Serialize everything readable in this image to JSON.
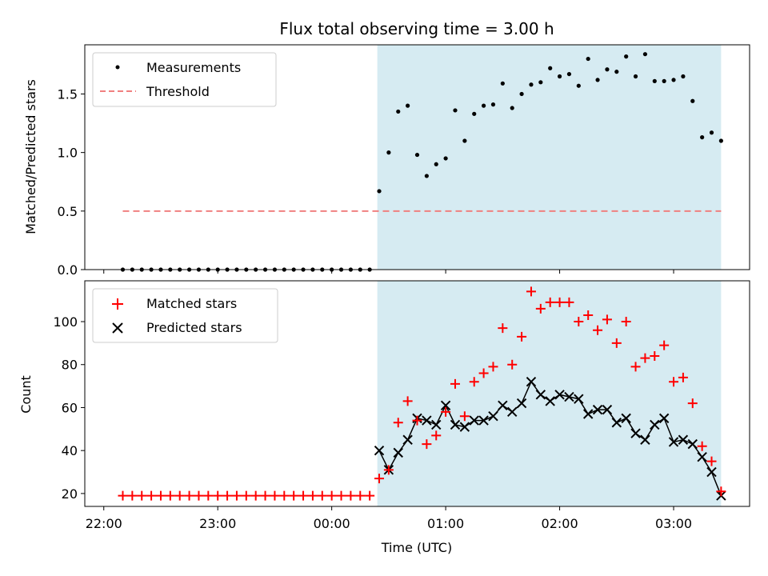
{
  "chart_data": [
    {
      "type": "scatter",
      "title": "Flux total observing time = 3.00 h",
      "xlabel": "",
      "ylabel": "Matched/Predicted stars",
      "xlim": [
        "21:50",
        "03:40"
      ],
      "ylim": [
        0,
        1.92
      ],
      "yticks": [
        0.0,
        0.5,
        1.0,
        1.5
      ],
      "ytick_labels": [
        "0.0",
        "0.5",
        "1.0",
        "1.5"
      ],
      "grid": false,
      "legend_position": "upper-left",
      "legend": [
        "Measurements",
        "Threshold"
      ],
      "shaded_region": {
        "start": "00:24",
        "end": "03:25",
        "color": "#add8e6"
      },
      "threshold": {
        "name": "Threshold",
        "value": 0.5,
        "start": "22:10",
        "end": "03:25",
        "color": "#f08080"
      },
      "series": [
        {
          "name": "Measurements",
          "color": "#000000",
          "x": [
            "22:10",
            "22:15",
            "22:20",
            "22:25",
            "22:30",
            "22:35",
            "22:40",
            "22:45",
            "22:50",
            "22:55",
            "23:00",
            "23:05",
            "23:10",
            "23:15",
            "23:20",
            "23:25",
            "23:30",
            "23:35",
            "23:40",
            "23:45",
            "23:50",
            "23:55",
            "00:00",
            "00:05",
            "00:10",
            "00:15",
            "00:20",
            "00:25",
            "00:30",
            "00:35",
            "00:40",
            "00:45",
            "00:50",
            "00:55",
            "01:00",
            "01:05",
            "01:10",
            "01:15",
            "01:20",
            "01:25",
            "01:30",
            "01:35",
            "01:40",
            "01:45",
            "01:50",
            "01:55",
            "02:00",
            "02:05",
            "02:10",
            "02:15",
            "02:20",
            "02:25",
            "02:30",
            "02:35",
            "02:40",
            "02:45",
            "02:50",
            "02:55",
            "03:00",
            "03:05",
            "03:10",
            "03:15",
            "03:20",
            "03:25"
          ],
          "y": [
            0,
            0,
            0,
            0,
            0,
            0,
            0,
            0,
            0,
            0,
            0,
            0,
            0,
            0,
            0,
            0,
            0,
            0,
            0,
            0,
            0,
            0,
            0,
            0,
            0,
            0,
            0,
            0.67,
            1.0,
            1.35,
            1.4,
            0.98,
            0.8,
            0.9,
            0.95,
            1.36,
            1.1,
            1.33,
            1.4,
            1.41,
            1.59,
            1.38,
            1.5,
            1.58,
            1.6,
            1.72,
            1.65,
            1.67,
            1.57,
            1.8,
            1.62,
            1.71,
            1.69,
            1.82,
            1.65,
            1.84,
            1.61,
            1.61,
            1.62,
            1.65,
            1.44,
            1.13,
            1.17,
            1.1
          ]
        }
      ]
    },
    {
      "type": "scatter",
      "title": "",
      "xlabel": "Time (UTC)",
      "ylabel": "Count",
      "xlim": [
        "21:50",
        "03:40"
      ],
      "ylim": [
        14,
        119
      ],
      "yticks": [
        20,
        40,
        60,
        80,
        100
      ],
      "ytick_labels": [
        "20",
        "40",
        "60",
        "80",
        "100"
      ],
      "xticks": [
        "22:00",
        "23:00",
        "00:00",
        "01:00",
        "02:00",
        "03:00"
      ],
      "xtick_labels": [
        "22:00",
        "23:00",
        "00:00",
        "01:00",
        "02:00",
        "03:00"
      ],
      "grid": false,
      "legend_position": "upper-left",
      "legend": [
        "Matched stars",
        "Predicted stars"
      ],
      "shaded_region": {
        "start": "00:24",
        "end": "03:25",
        "color": "#add8e6"
      },
      "series": [
        {
          "name": "Matched stars",
          "marker": "+",
          "color": "#ff0000",
          "x": [
            "22:10",
            "22:15",
            "22:20",
            "22:25",
            "22:30",
            "22:35",
            "22:40",
            "22:45",
            "22:50",
            "22:55",
            "23:00",
            "23:05",
            "23:10",
            "23:15",
            "23:20",
            "23:25",
            "23:30",
            "23:35",
            "23:40",
            "23:45",
            "23:50",
            "23:55",
            "00:00",
            "00:05",
            "00:10",
            "00:15",
            "00:20",
            "00:25",
            "00:30",
            "00:35",
            "00:40",
            "00:45",
            "00:50",
            "00:55",
            "01:00",
            "01:05",
            "01:10",
            "01:15",
            "01:20",
            "01:25",
            "01:30",
            "01:35",
            "01:40",
            "01:45",
            "01:50",
            "01:55",
            "02:00",
            "02:05",
            "02:10",
            "02:15",
            "02:20",
            "02:25",
            "02:30",
            "02:35",
            "02:40",
            "02:45",
            "02:50",
            "02:55",
            "03:00",
            "03:05",
            "03:10",
            "03:15",
            "03:20",
            "03:25"
          ],
          "y": [
            19,
            19,
            19,
            19,
            19,
            19,
            19,
            19,
            19,
            19,
            19,
            19,
            19,
            19,
            19,
            19,
            19,
            19,
            19,
            19,
            19,
            19,
            19,
            19,
            19,
            19,
            19,
            27,
            31,
            53,
            63,
            54,
            43,
            47,
            58,
            71,
            56,
            72,
            76,
            79,
            97,
            80,
            93,
            114,
            106,
            109,
            109,
            109,
            100,
            103,
            96,
            101,
            90,
            100,
            79,
            83,
            84,
            89,
            72,
            74,
            62,
            42,
            35,
            21
          ]
        },
        {
          "name": "Predicted stars",
          "marker": "x",
          "color": "#000000",
          "x": [
            "00:25",
            "00:30",
            "00:35",
            "00:40",
            "00:45",
            "00:50",
            "00:55",
            "01:00",
            "01:05",
            "01:10",
            "01:15",
            "01:20",
            "01:25",
            "01:30",
            "01:35",
            "01:40",
            "01:45",
            "01:50",
            "01:55",
            "02:00",
            "02:05",
            "02:10",
            "02:15",
            "02:20",
            "02:25",
            "02:30",
            "02:35",
            "02:40",
            "02:45",
            "02:50",
            "02:55",
            "03:00",
            "03:05",
            "03:10",
            "03:15",
            "03:20",
            "03:25"
          ],
          "y": [
            40,
            31,
            39,
            45,
            55,
            54,
            52,
            61,
            52,
            51,
            54,
            54,
            56,
            61,
            58,
            62,
            72,
            66,
            63,
            66,
            65,
            64,
            57,
            59,
            59,
            53,
            55,
            48,
            45,
            52,
            55,
            44,
            45,
            43,
            37,
            30,
            19
          ]
        }
      ]
    }
  ]
}
